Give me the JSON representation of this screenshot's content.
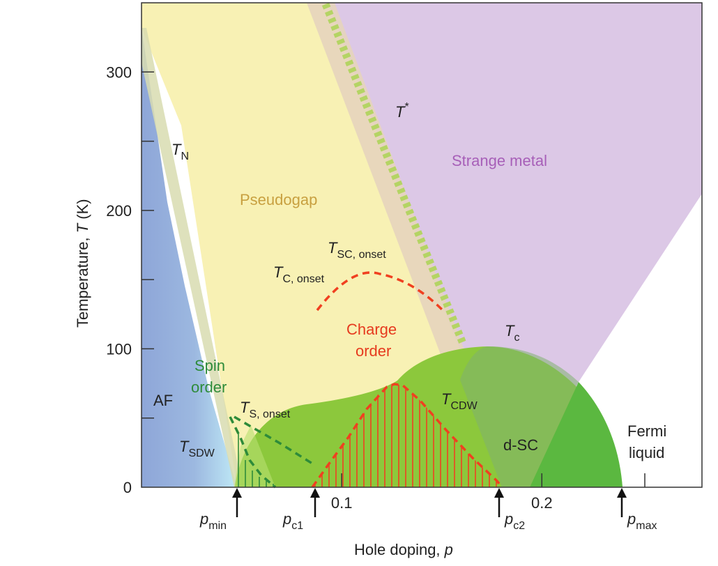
{
  "axes": {
    "xlabel": "Hole doping, ",
    "xlabel_var": "p",
    "ylabel_prefix": "Temperature, ",
    "ylabel_var": "T",
    "ylabel_suffix": " (K)",
    "x_ticks": [
      {
        "value": 0.1,
        "label": "0.1"
      },
      {
        "value": 0.2,
        "label": "0.2"
      }
    ],
    "y_ticks": [
      {
        "value": 0,
        "label": "0"
      },
      {
        "value": 100,
        "label": "100"
      },
      {
        "value": 200,
        "label": "200"
      },
      {
        "value": 300,
        "label": "300"
      }
    ],
    "y_minor_ticks": [
      50,
      150,
      250
    ],
    "xlim": [
      0,
      0.28
    ],
    "ylim": [
      0,
      350
    ]
  },
  "regions": {
    "af": "AF",
    "spin_order_line1": "Spin",
    "spin_order_line2": "order",
    "pseudogap": "Pseudogap",
    "strange_metal": "Strange metal",
    "charge_order_line1": "Charge",
    "charge_order_line2": "order",
    "dsc": "d-SC",
    "fermi_line1": "Fermi",
    "fermi_line2": "liquid"
  },
  "line_labels": {
    "tn_main": "T",
    "tn_sub": "N",
    "tstar_main": "T",
    "tstar_sup": "*",
    "tsc_onset_main": "T",
    "tsc_onset_sub": "SC, onset",
    "tc_onset_main": "T",
    "tc_onset_sub": "C, onset",
    "tc_main": "T",
    "tc_sub": "c",
    "tcdw_main": "T",
    "tcdw_sub": "CDW",
    "ts_onset_main": "T",
    "ts_onset_sub": "S, onset",
    "tsdw_main": "T",
    "tsdw_sub": "SDW"
  },
  "markers": [
    {
      "name": "p-min",
      "main": "p",
      "sub": "min"
    },
    {
      "name": "p-c1",
      "main": "p",
      "sub": "c1"
    },
    {
      "name": "p-c2",
      "main": "p",
      "sub": "c2"
    },
    {
      "name": "p-max",
      "main": "p",
      "sub": "max"
    }
  ],
  "colors": {
    "af_blue": "#8fa8d8",
    "pseudogap_yellow": "#f8f0b0",
    "strange_metal_purple": "#dcc8e6",
    "sc_green": "#8cc83c",
    "sc_dark_green": "#5bb840",
    "charge_red": "#f04020",
    "spin_green": "#2e8b3a",
    "tstar_green": "#b4d464",
    "strange_text": "#a75fb8",
    "pseudogap_text": "#c8a040"
  }
}
